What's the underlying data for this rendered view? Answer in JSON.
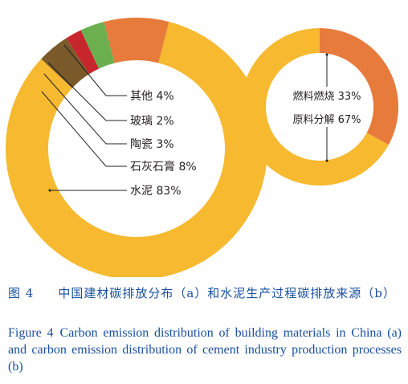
{
  "chart_data": [
    {
      "type": "pie",
      "style": "donut",
      "panel": "a",
      "categories": [
        "水泥",
        "石灰石膏",
        "陶瓷",
        "玻璃",
        "其他"
      ],
      "labels": [
        "水泥 83%",
        "石灰石膏 8%",
        "陶瓷 3%",
        "玻璃 2%",
        "其他 4%"
      ],
      "values": [
        83,
        8,
        3,
        2,
        4
      ],
      "colors": [
        "#f6b92f",
        "#e77b3c",
        "#6caf4f",
        "#c8262d",
        "#7a5a2a"
      ]
    },
    {
      "type": "pie",
      "style": "donut",
      "panel": "b",
      "categories": [
        "燃料燃烧",
        "原料分解"
      ],
      "labels": [
        "燃料燃烧 33%",
        "原料分解 67%"
      ],
      "values": [
        33,
        67
      ],
      "colors": [
        "#e77b3c",
        "#f6b92f"
      ]
    }
  ],
  "caption": {
    "cn_number": "图 4",
    "cn_text": "中国建材碳排放分布（a）和水泥生产过程碳排放来源（b）",
    "en_number": "Figure 4",
    "en_text": "Carbon emission distribution of building materials in China (a) and carbon emission distribution of cement industry production processes (b)"
  }
}
